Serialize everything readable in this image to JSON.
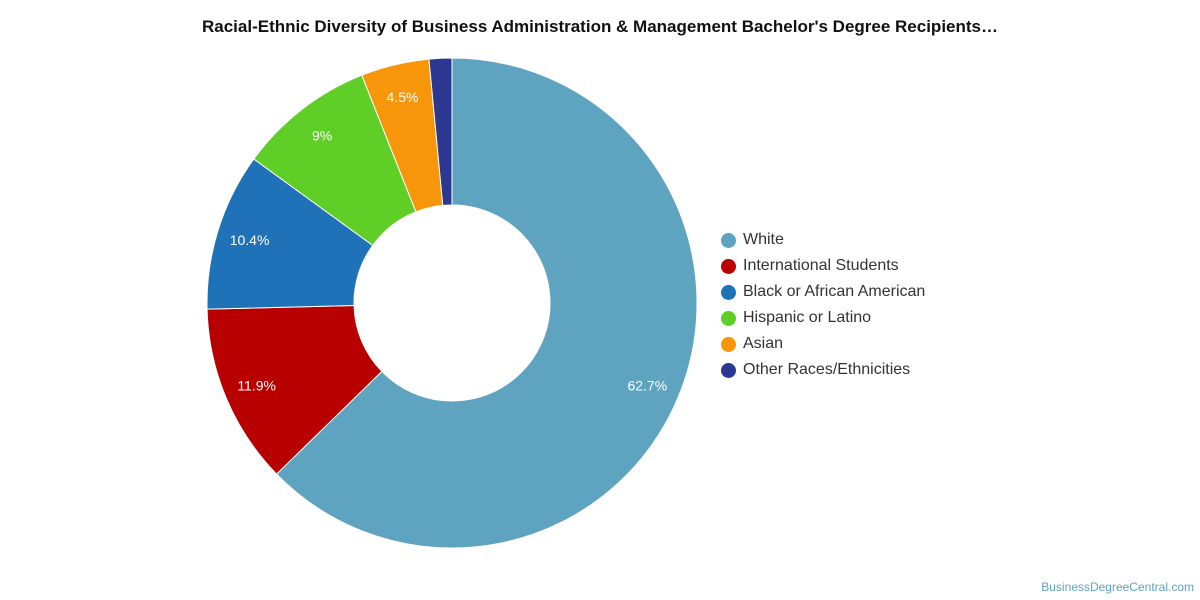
{
  "chart_data": {
    "type": "pie",
    "title": "Racial-Ethnic Diversity of Business Administration & Management Bachelor's Degree Recipients…",
    "legend_position": "right",
    "categories": [
      "White",
      "International Students",
      "Black or African American",
      "Hispanic or Latino",
      "Asian",
      "Other Races/Ethnicities"
    ],
    "values": [
      62.7,
      11.9,
      10.4,
      9,
      4.5,
      1.5
    ],
    "labels": [
      "62.7%",
      "11.9%",
      "10.4%",
      "9%",
      "4.5%",
      ""
    ],
    "colors": [
      "#5ea3c0",
      "#b80000",
      "#1f72b8",
      "#5fcf27",
      "#f7960a",
      "#2c3792"
    ]
  },
  "credit": "BusinessDegreeCentral.com"
}
